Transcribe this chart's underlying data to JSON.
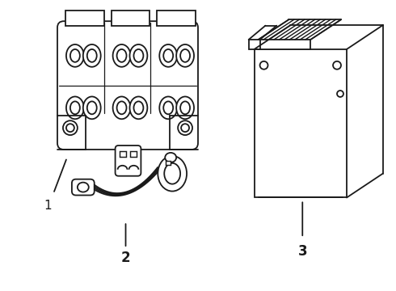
{
  "background_color": "#ffffff",
  "line_color": "#1a1a1a",
  "line_width": 1.3,
  "label_fontsize": 11,
  "fig_width": 4.9,
  "fig_height": 3.6,
  "dpi": 100
}
